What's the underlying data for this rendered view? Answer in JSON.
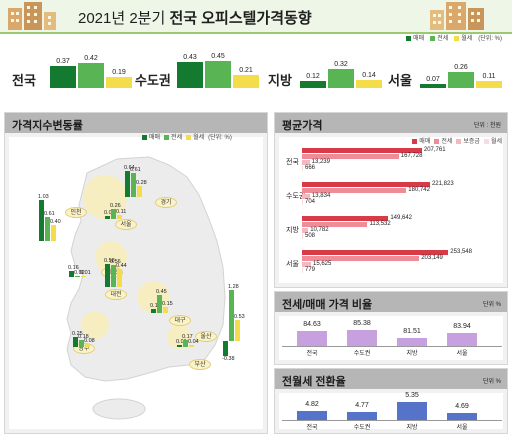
{
  "title": {
    "normal": "2021년 2분기 ",
    "bold": "전국 오피스텔가격동향"
  },
  "colors": {
    "sale": "#137a2f",
    "jeonse": "#59b554",
    "monthly": "#f4dc4a",
    "red_dark": "#d93a48",
    "red_mid": "#ee8d98",
    "red_light": "#f3b9be",
    "ratio": "#c7a0df",
    "conv_blue": "#5473c9"
  },
  "summary": {
    "legend": [
      "매매",
      "전세",
      "월세",
      "(단위: %)"
    ],
    "groups": [
      {
        "label": "전국",
        "values": [
          "0.37",
          "0.42",
          "0.19"
        ],
        "nums": [
          0.37,
          0.42,
          0.19
        ]
      },
      {
        "label": "수도권",
        "values": [
          "0.43",
          "0.45",
          "0.21"
        ],
        "nums": [
          0.43,
          0.45,
          0.21
        ]
      },
      {
        "label": "지방",
        "values": [
          "0.12",
          "0.32",
          "0.14"
        ],
        "nums": [
          0.12,
          0.32,
          0.14
        ]
      },
      {
        "label": "서울",
        "values": [
          "0.07",
          "0.26",
          "0.11"
        ],
        "nums": [
          0.07,
          0.26,
          0.11
        ]
      }
    ]
  },
  "map_panel": {
    "title": "가격지수변동률",
    "legend": [
      "매매",
      "전세",
      "월세",
      "(단위: %)"
    ],
    "cities": [
      "인천",
      "서울",
      "경기",
      "세종",
      "대전",
      "대구",
      "울산",
      "광주",
      "부산"
    ],
    "bars": [
      {
        "region": "인천",
        "values": [
          "1.03",
          "0.61",
          "0.40"
        ],
        "nums": [
          1.03,
          0.61,
          0.4
        ]
      },
      {
        "region": "서울",
        "values": [
          "0.07",
          "0.26",
          "0.11"
        ],
        "nums": [
          0.07,
          0.26,
          0.11
        ]
      },
      {
        "region": "경기",
        "values": [
          "0.64",
          "0.61",
          "0.28"
        ],
        "nums": [
          0.64,
          0.61,
          0.28
        ]
      },
      {
        "region": "세종",
        "values": [
          "0.16",
          "0.02",
          "0.01"
        ],
        "nums": [
          0.16,
          0.02,
          0.01
        ]
      },
      {
        "region": "대전",
        "values": [
          "0.58",
          "0.56",
          "0.44"
        ],
        "nums": [
          0.58,
          0.56,
          0.44
        ]
      },
      {
        "region": "대구",
        "values": [
          "0.11",
          "0.45",
          "0.15"
        ],
        "nums": [
          0.11,
          0.45,
          0.15
        ]
      },
      {
        "region": "광주",
        "values": [
          "0.25",
          "0.18",
          "0.08"
        ],
        "nums": [
          0.25,
          0.18,
          0.08
        ]
      },
      {
        "region": "울산",
        "values": [
          "0.06",
          "0.17",
          "0.04"
        ],
        "nums": [
          0.06,
          0.17,
          0.04
        ]
      },
      {
        "region": "부산",
        "values": [
          "-0.38",
          "1.28",
          "0.53"
        ],
        "nums": [
          -0.38,
          1.28,
          0.53
        ]
      }
    ]
  },
  "avg_price": {
    "title": "평균가격",
    "unit": "단위 : 천원",
    "legend": [
      "매매",
      "전세",
      "보증금",
      "월세"
    ],
    "rows": [
      {
        "label": "전국",
        "values": [
          "207,761",
          "167,728",
          "13,239",
          "666"
        ],
        "nums": [
          207761,
          167728,
          13239,
          666
        ]
      },
      {
        "label": "수도권",
        "values": [
          "221,823",
          "180,742",
          "13,834",
          "704"
        ],
        "nums": [
          221823,
          180742,
          13834,
          704
        ]
      },
      {
        "label": "지방",
        "values": [
          "149,642",
          "113,532",
          "10,782",
          "508"
        ],
        "nums": [
          149642,
          113532,
          10782,
          508
        ]
      },
      {
        "label": "서울",
        "values": [
          "253,548",
          "203,149",
          "15,625",
          "779"
        ],
        "nums": [
          253548,
          203149,
          15625,
          779
        ]
      }
    ]
  },
  "ratio": {
    "title": "전세/매매 가격 비율",
    "unit": "단위 %",
    "categories": [
      "전국",
      "수도권",
      "지방",
      "서울"
    ],
    "values": [
      "84.63",
      "85.38",
      "81.51",
      "83.94"
    ],
    "nums": [
      84.63,
      85.38,
      81.51,
      83.94
    ]
  },
  "conversion": {
    "title": "전월세 전환율",
    "unit": "단위 %",
    "categories": [
      "전국",
      "수도권",
      "지방",
      "서울"
    ],
    "values": [
      "4.82",
      "4.77",
      "5.35",
      "4.69"
    ],
    "nums": [
      4.82,
      4.77,
      5.35,
      4.69
    ]
  },
  "chart_data": [
    {
      "type": "bar",
      "title": "2021년 2분기 전국 오피스텔가격동향",
      "categories": [
        "전국",
        "수도권",
        "지방",
        "서울"
      ],
      "series": [
        {
          "name": "매매",
          "values": [
            0.37,
            0.43,
            0.12,
            0.07
          ]
        },
        {
          "name": "전세",
          "values": [
            0.42,
            0.45,
            0.32,
            0.26
          ]
        },
        {
          "name": "월세",
          "values": [
            0.19,
            0.21,
            0.14,
            0.11
          ]
        }
      ],
      "ylabel": "(단위: %)"
    },
    {
      "type": "bar",
      "title": "가격지수변동률",
      "categories": [
        "인천",
        "서울",
        "경기",
        "세종",
        "대전",
        "대구",
        "광주",
        "울산",
        "부산"
      ],
      "series": [
        {
          "name": "매매",
          "values": [
            1.03,
            0.07,
            0.64,
            0.16,
            0.58,
            0.11,
            0.25,
            0.06,
            -0.38
          ]
        },
        {
          "name": "전세",
          "values": [
            0.61,
            0.26,
            0.61,
            0.02,
            0.56,
            0.45,
            0.18,
            0.17,
            1.28
          ]
        },
        {
          "name": "월세",
          "values": [
            0.4,
            0.11,
            0.28,
            0.01,
            0.44,
            0.15,
            0.08,
            0.04,
            0.53
          ]
        }
      ]
    },
    {
      "type": "bar",
      "title": "평균가격",
      "categories": [
        "전국",
        "수도권",
        "지방",
        "서울"
      ],
      "series": [
        {
          "name": "매매",
          "values": [
            207761,
            221823,
            149642,
            253548
          ]
        },
        {
          "name": "전세",
          "values": [
            167728,
            180742,
            113532,
            203149
          ]
        },
        {
          "name": "보증금",
          "values": [
            13239,
            13834,
            10782,
            15625
          ]
        },
        {
          "name": "월세",
          "values": [
            666,
            704,
            508,
            779
          ]
        }
      ]
    },
    {
      "type": "bar",
      "title": "전세/매매 가격 비율",
      "categories": [
        "전국",
        "수도권",
        "지방",
        "서울"
      ],
      "values": [
        84.63,
        85.38,
        81.51,
        83.94
      ]
    },
    {
      "type": "bar",
      "title": "전월세 전환율",
      "categories": [
        "전국",
        "수도권",
        "지방",
        "서울"
      ],
      "values": [
        4.82,
        4.77,
        5.35,
        4.69
      ]
    }
  ]
}
